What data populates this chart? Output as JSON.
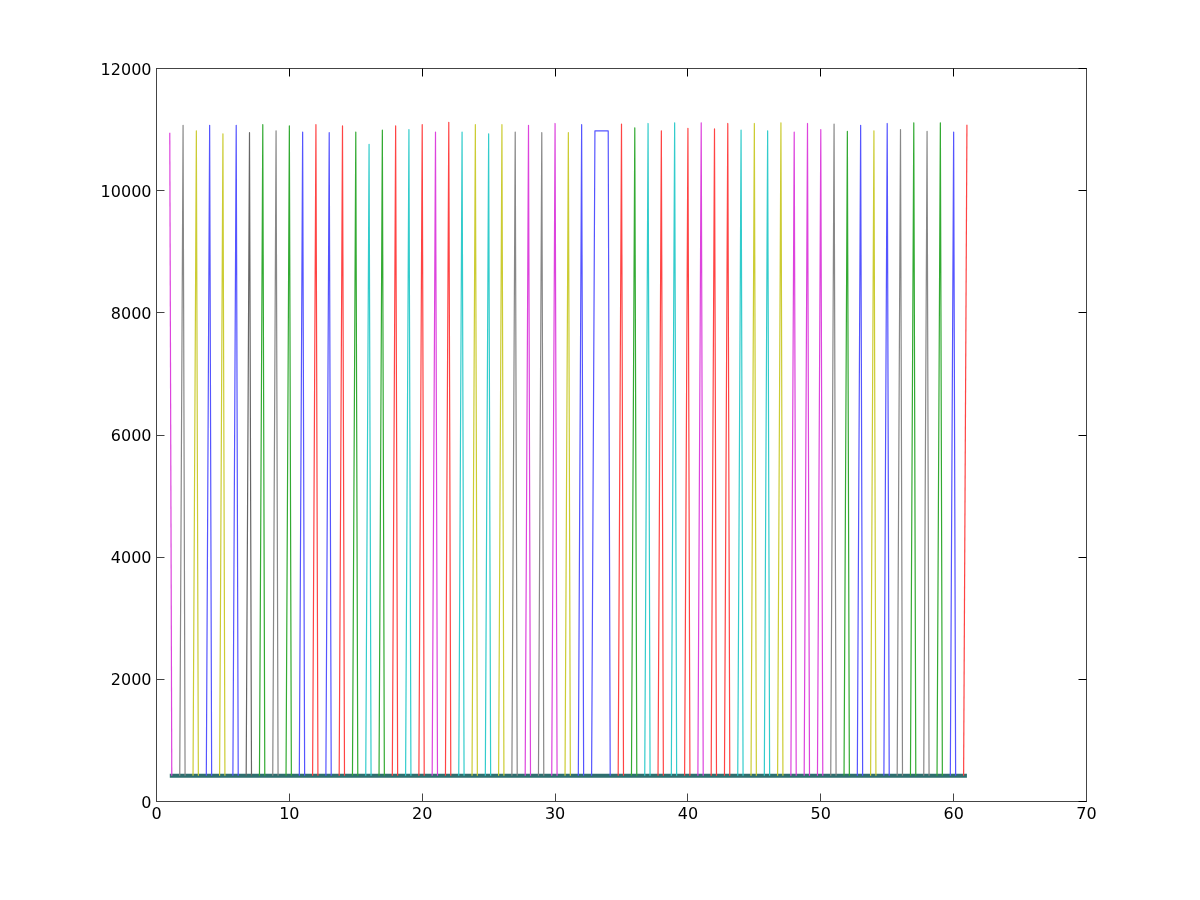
{
  "chart_data": {
    "type": "line",
    "xlim": [
      0,
      70
    ],
    "ylim": [
      0,
      12000
    ],
    "xticks": [
      0,
      10,
      20,
      30,
      40,
      50,
      60,
      70
    ],
    "yticks": [
      0,
      2000,
      4000,
      6000,
      8000,
      10000,
      12000
    ],
    "grid": false,
    "marker": "none",
    "line_style": "solid",
    "series": [
      {
        "color": "#2f6f6f",
        "x": [
          1,
          61
        ],
        "values": [
          420,
          420
        ]
      },
      {
        "color": "#dd44dd",
        "x": [
          1,
          1.15
        ],
        "values": [
          10950,
          420
        ]
      },
      {
        "color": "#888888",
        "x": [
          1.75,
          2,
          2.15
        ],
        "values": [
          420,
          11070,
          420
        ]
      },
      {
        "color": "#cccc33",
        "x": [
          2.75,
          3,
          3.15
        ],
        "values": [
          420,
          10980,
          420
        ]
      },
      {
        "color": "#5555ff",
        "x": [
          3.75,
          4,
          4.15
        ],
        "values": [
          420,
          11070,
          420
        ]
      },
      {
        "color": "#cccc33",
        "x": [
          4.75,
          5,
          5.15
        ],
        "values": [
          420,
          10930,
          420
        ]
      },
      {
        "color": "#5555ff",
        "x": [
          5.75,
          6,
          6.15
        ],
        "values": [
          420,
          11070,
          420
        ]
      },
      {
        "color": "#666666",
        "x": [
          6.75,
          7,
          7.15
        ],
        "values": [
          420,
          10950,
          420
        ]
      },
      {
        "color": "#33aa33",
        "x": [
          7.75,
          8,
          8.15
        ],
        "values": [
          420,
          11080,
          420
        ]
      },
      {
        "color": "#888888",
        "x": [
          8.75,
          9,
          9.15
        ],
        "values": [
          420,
          10980,
          420
        ]
      },
      {
        "color": "#33aa33",
        "x": [
          9.75,
          10,
          10.15
        ],
        "values": [
          420,
          11060,
          420
        ]
      },
      {
        "color": "#5555ff",
        "x": [
          10.75,
          11,
          11.15
        ],
        "values": [
          420,
          10960,
          420
        ]
      },
      {
        "color": "#ff4444",
        "x": [
          11.75,
          12,
          12.15
        ],
        "values": [
          420,
          11080,
          420
        ]
      },
      {
        "color": "#5555ff",
        "x": [
          12.75,
          13,
          13.15
        ],
        "values": [
          420,
          10950,
          420
        ]
      },
      {
        "color": "#ff4444",
        "x": [
          13.75,
          14,
          14.15
        ],
        "values": [
          420,
          11060,
          420
        ]
      },
      {
        "color": "#33aa33",
        "x": [
          14.75,
          15,
          15.15
        ],
        "values": [
          420,
          10960,
          420
        ]
      },
      {
        "color": "#33cccc",
        "x": [
          15.75,
          16,
          16.15
        ],
        "values": [
          420,
          10760,
          420
        ]
      },
      {
        "color": "#33aa33",
        "x": [
          16.75,
          17,
          17.15
        ],
        "values": [
          420,
          10990,
          420
        ]
      },
      {
        "color": "#ff4444",
        "x": [
          17.75,
          18,
          18.15
        ],
        "values": [
          420,
          11060,
          420
        ]
      },
      {
        "color": "#33cccc",
        "x": [
          18.75,
          19,
          19.15
        ],
        "values": [
          420,
          11000,
          420
        ]
      },
      {
        "color": "#ff4444",
        "x": [
          19.75,
          20,
          20.15
        ],
        "values": [
          420,
          11080,
          420
        ]
      },
      {
        "color": "#dd44dd",
        "x": [
          20.75,
          21,
          21.15
        ],
        "values": [
          420,
          10960,
          420
        ]
      },
      {
        "color": "#ff4444",
        "x": [
          21.75,
          22,
          22.15
        ],
        "values": [
          420,
          11120,
          420
        ]
      },
      {
        "color": "#33cccc",
        "x": [
          22.75,
          23,
          23.15
        ],
        "values": [
          420,
          10960,
          420
        ]
      },
      {
        "color": "#cccc33",
        "x": [
          23.75,
          24,
          24.15
        ],
        "values": [
          420,
          11080,
          420
        ]
      },
      {
        "color": "#33cccc",
        "x": [
          24.75,
          25,
          25.15
        ],
        "values": [
          420,
          10930,
          420
        ]
      },
      {
        "color": "#cccc33",
        "x": [
          25.75,
          26,
          26.15
        ],
        "values": [
          420,
          11080,
          420
        ]
      },
      {
        "color": "#888888",
        "x": [
          26.75,
          27,
          27.15
        ],
        "values": [
          420,
          10960,
          420
        ]
      },
      {
        "color": "#dd44dd",
        "x": [
          27.75,
          28,
          28.15
        ],
        "values": [
          420,
          11070,
          420
        ]
      },
      {
        "color": "#888888",
        "x": [
          28.75,
          29,
          29.15
        ],
        "values": [
          420,
          10950,
          420
        ]
      },
      {
        "color": "#dd44dd",
        "x": [
          29.75,
          30,
          30.15
        ],
        "values": [
          420,
          11100,
          420
        ]
      },
      {
        "color": "#cccc33",
        "x": [
          30.75,
          31,
          31.15
        ],
        "values": [
          420,
          10950,
          420
        ]
      },
      {
        "color": "#5555ff",
        "x": [
          31.75,
          32,
          32.15
        ],
        "values": [
          420,
          11080,
          420
        ]
      },
      {
        "color": "#5555ff",
        "x": [
          32.75,
          33,
          34,
          34.15
        ],
        "values": [
          420,
          10980,
          10980,
          420
        ]
      },
      {
        "color": "#ff4444",
        "x": [
          34.75,
          35,
          35.15
        ],
        "values": [
          420,
          11090,
          420
        ]
      },
      {
        "color": "#33aa33",
        "x": [
          35.75,
          36,
          36.15
        ],
        "values": [
          420,
          11030,
          420
        ]
      },
      {
        "color": "#33cccc",
        "x": [
          36.75,
          37,
          37.15
        ],
        "values": [
          420,
          11100,
          420
        ]
      },
      {
        "color": "#ff4444",
        "x": [
          37.75,
          38,
          38.15
        ],
        "values": [
          420,
          10980,
          420
        ]
      },
      {
        "color": "#33cccc",
        "x": [
          38.75,
          39,
          39.15
        ],
        "values": [
          420,
          11110,
          420
        ]
      },
      {
        "color": "#ff4444",
        "x": [
          39.75,
          40,
          40.15
        ],
        "values": [
          420,
          11020,
          420
        ]
      },
      {
        "color": "#dd44dd",
        "x": [
          40.75,
          41,
          41.15
        ],
        "values": [
          420,
          11110,
          420
        ]
      },
      {
        "color": "#ff4444",
        "x": [
          41.75,
          42,
          42.15
        ],
        "values": [
          420,
          11010,
          420
        ]
      },
      {
        "color": "#ff4444",
        "x": [
          42.75,
          43,
          43.15
        ],
        "values": [
          420,
          11100,
          420
        ]
      },
      {
        "color": "#33cccc",
        "x": [
          43.75,
          44,
          44.15
        ],
        "values": [
          420,
          10990,
          420
        ]
      },
      {
        "color": "#cccc33",
        "x": [
          44.75,
          45,
          45.15
        ],
        "values": [
          420,
          11100,
          420
        ]
      },
      {
        "color": "#33cccc",
        "x": [
          45.75,
          46,
          46.15
        ],
        "values": [
          420,
          10980,
          420
        ]
      },
      {
        "color": "#cccc33",
        "x": [
          46.75,
          47,
          47.15
        ],
        "values": [
          420,
          11110,
          420
        ]
      },
      {
        "color": "#dd44dd",
        "x": [
          47.75,
          48,
          48.15
        ],
        "values": [
          420,
          10960,
          420
        ]
      },
      {
        "color": "#dd44dd",
        "x": [
          48.75,
          49,
          49.15
        ],
        "values": [
          420,
          11100,
          420
        ]
      },
      {
        "color": "#dd44dd",
        "x": [
          49.75,
          50,
          50.15
        ],
        "values": [
          420,
          11000,
          420
        ]
      },
      {
        "color": "#888888",
        "x": [
          50.75,
          51,
          51.15
        ],
        "values": [
          420,
          11090,
          420
        ]
      },
      {
        "color": "#33aa33",
        "x": [
          51.75,
          52,
          52.15
        ],
        "values": [
          420,
          10970,
          420
        ]
      },
      {
        "color": "#5555ff",
        "x": [
          52.75,
          53,
          53.15
        ],
        "values": [
          420,
          11070,
          420
        ]
      },
      {
        "color": "#cccc33",
        "x": [
          53.75,
          54,
          54.15
        ],
        "values": [
          420,
          10980,
          420
        ]
      },
      {
        "color": "#5555ff",
        "x": [
          54.75,
          55,
          55.15
        ],
        "values": [
          420,
          11100,
          420
        ]
      },
      {
        "color": "#888888",
        "x": [
          55.75,
          56,
          56.15
        ],
        "values": [
          420,
          11000,
          420
        ]
      },
      {
        "color": "#33aa33",
        "x": [
          56.75,
          57,
          57.15
        ],
        "values": [
          420,
          11110,
          420
        ]
      },
      {
        "color": "#888888",
        "x": [
          57.75,
          58,
          58.15
        ],
        "values": [
          420,
          10970,
          420
        ]
      },
      {
        "color": "#33aa33",
        "x": [
          58.75,
          59,
          59.15
        ],
        "values": [
          420,
          11110,
          420
        ]
      },
      {
        "color": "#5555ff",
        "x": [
          59.75,
          60,
          60.15
        ],
        "values": [
          420,
          10960,
          420
        ]
      },
      {
        "color": "#ff4444",
        "x": [
          60.75,
          61
        ],
        "values": [
          420,
          11080
        ]
      }
    ]
  }
}
